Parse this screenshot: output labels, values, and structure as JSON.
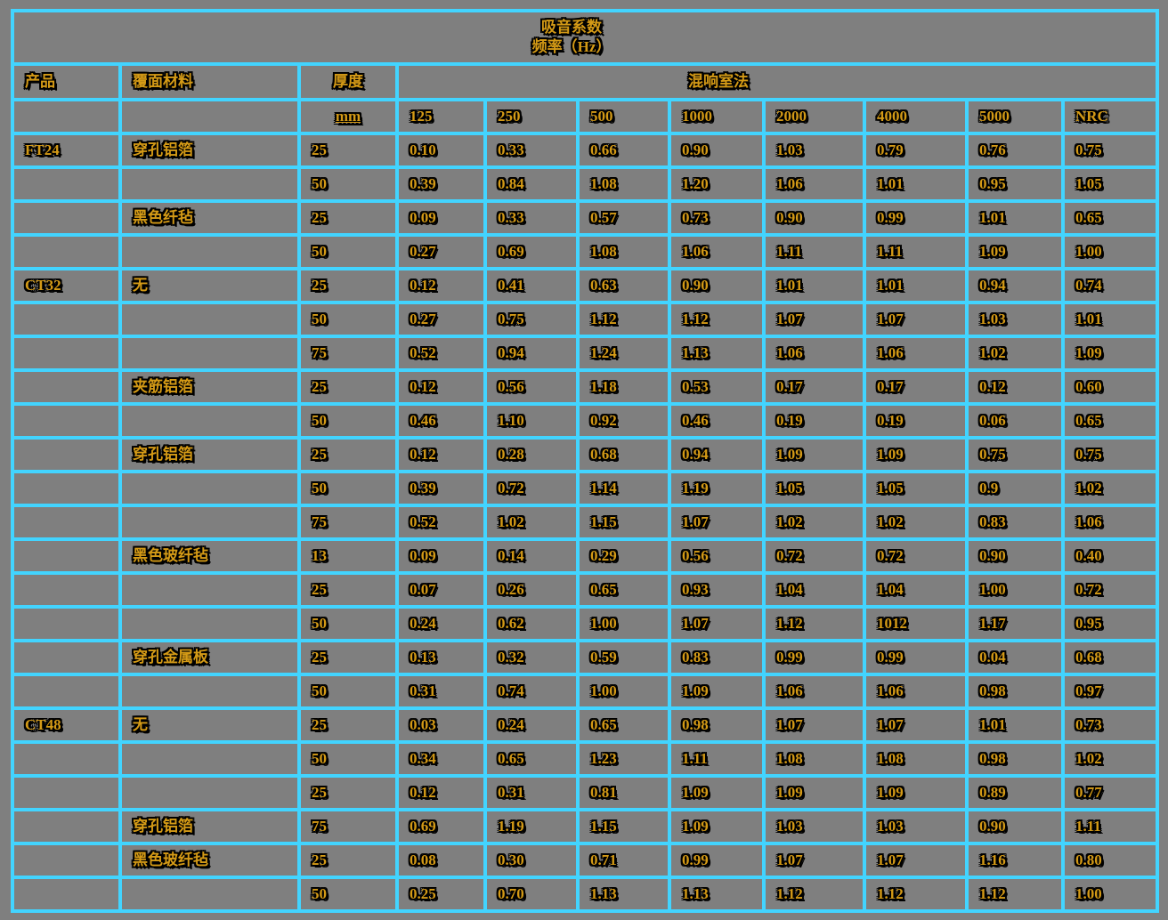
{
  "colors": {
    "background": "#7f7f7f",
    "grid": "#42d4ff",
    "text_gold": "#d49a16",
    "text_outline": "#000000"
  },
  "table": {
    "title": {
      "line1": "吸音系数",
      "line2": "频率（Hz）"
    },
    "header": {
      "product": "产品",
      "material": "覆面材料",
      "thickness": "厚度",
      "method": "混响室法",
      "thickness_unit": "mm",
      "freq_cols": [
        "125",
        "250",
        "500",
        "1000",
        "2000",
        "4000",
        "5000",
        "NRC"
      ]
    },
    "rows": [
      {
        "product": "FT24",
        "material": "穿孔铝箔",
        "thickness": "25",
        "values": [
          "0.10",
          "0.33",
          "0.66",
          "0.90",
          "1.03",
          "0.79",
          "0.76",
          "0.75"
        ]
      },
      {
        "product": "",
        "material": "",
        "thickness": "50",
        "values": [
          "0.39",
          "0.84",
          "1.08",
          "1.20",
          "1.06",
          "1.01",
          "0.95",
          "1.05"
        ]
      },
      {
        "product": "",
        "material": "黑色纤毡",
        "thickness": "25",
        "values": [
          "0.09",
          "0.33",
          "0.57",
          "0.73",
          "0.90",
          "0.99",
          "1.01",
          "0.65"
        ]
      },
      {
        "product": "",
        "material": "",
        "thickness": "50",
        "values": [
          "0.27",
          "0.69",
          "1.08",
          "1.06",
          "1.11",
          "1.11",
          "1.09",
          "1.00"
        ]
      },
      {
        "product": "CT32",
        "material": "无",
        "thickness": "25",
        "values": [
          "0.12",
          "0.41",
          "0.63",
          "0.90",
          "1.01",
          "1.01",
          "0.94",
          "0.74"
        ]
      },
      {
        "product": "",
        "material": "",
        "thickness": "50",
        "values": [
          "0.27",
          "0.75",
          "1.12",
          "1.12",
          "1.07",
          "1.07",
          "1.03",
          "1.01"
        ]
      },
      {
        "product": "",
        "material": "",
        "thickness": "75",
        "values": [
          "0.52",
          "0.94",
          "1.24",
          "1.13",
          "1.06",
          "1.06",
          "1.02",
          "1.09"
        ]
      },
      {
        "product": "",
        "material": "夹筋铝箔",
        "thickness": "25",
        "values": [
          "0.12",
          "0.56",
          "1.18",
          "0.53",
          "0.17",
          "0.17",
          "0.12",
          "0.60"
        ]
      },
      {
        "product": "",
        "material": "",
        "thickness": "50",
        "values": [
          "0.46",
          "1.10",
          "0.92",
          "0.46",
          "0.19",
          "0.19",
          "0.06",
          "0.65"
        ]
      },
      {
        "product": "",
        "material": "穿孔铝箔",
        "thickness": "25",
        "values": [
          "0.12",
          "0.28",
          "0.68",
          "0.94",
          "1.09",
          "1.09",
          "0.75",
          "0.75"
        ]
      },
      {
        "product": "",
        "material": "",
        "thickness": "50",
        "values": [
          "0.39",
          "0.72",
          "1.14",
          "1.19",
          "1.05",
          "1.05",
          "0.9",
          "1.02"
        ]
      },
      {
        "product": "",
        "material": "",
        "thickness": "75",
        "values": [
          "0.52",
          "1.02",
          "1.15",
          "1.07",
          "1.02",
          "1.02",
          "0.83",
          "1.06"
        ]
      },
      {
        "product": "",
        "material": "黑色玻纤毡",
        "thickness": "13",
        "values": [
          "0.09",
          "0.14",
          "0.29",
          "0.56",
          "0.72",
          "0.72",
          "0.90",
          "0.40"
        ]
      },
      {
        "product": "",
        "material": "",
        "thickness": "25",
        "values": [
          "0.07",
          "0.26",
          "0.65",
          "0.93",
          "1.04",
          "1.04",
          "1.00",
          "0.72"
        ]
      },
      {
        "product": "",
        "material": "",
        "thickness": "50",
        "values": [
          "0.24",
          "0.62",
          "1.00",
          "1.07",
          "1.12",
          "1012",
          "1.17",
          "0.95"
        ]
      },
      {
        "product": "",
        "material": "穿孔金属板",
        "thickness": "25",
        "values": [
          "0.13",
          "0.32",
          "0.59",
          "0.83",
          "0.99",
          "0.99",
          "0.04",
          "0.68"
        ]
      },
      {
        "product": "",
        "material": "",
        "thickness": "50",
        "values": [
          "0.31",
          "0.74",
          "1.00",
          "1.09",
          "1.06",
          "1.06",
          "0.98",
          "0.97"
        ]
      },
      {
        "product": "CT48",
        "material": "无",
        "thickness": "25",
        "values": [
          "0.03",
          "0.24",
          "0.65",
          "0.98",
          "1.07",
          "1.07",
          "1.01",
          "0.73"
        ]
      },
      {
        "product": "",
        "material": "",
        "thickness": "50",
        "values": [
          "0.34",
          "0.65",
          "1.23",
          "1.11",
          "1.08",
          "1.08",
          "0.98",
          "1.02"
        ]
      },
      {
        "product": "",
        "material": "",
        "thickness": "25",
        "values": [
          "0.12",
          "0.31",
          "0.81",
          "1.09",
          "1.09",
          "1.09",
          "0.89",
          "0.77"
        ]
      },
      {
        "product": "",
        "material": "穿孔铝箔",
        "thickness": "75",
        "values": [
          "0.69",
          "1.19",
          "1.15",
          "1.09",
          "1.03",
          "1.03",
          "0.90",
          "1.11"
        ]
      },
      {
        "product": "",
        "material": "黑色玻纤毡",
        "thickness": "25",
        "values": [
          "0.08",
          "0.30",
          "0.71",
          "0.99",
          "1.07",
          "1.07",
          "1.16",
          "0.80"
        ]
      },
      {
        "product": "",
        "material": "",
        "thickness": "50",
        "values": [
          "0.25",
          "0.70",
          "1.13",
          "1.13",
          "1.12",
          "1.12",
          "1.12",
          "1.00"
        ]
      }
    ]
  }
}
